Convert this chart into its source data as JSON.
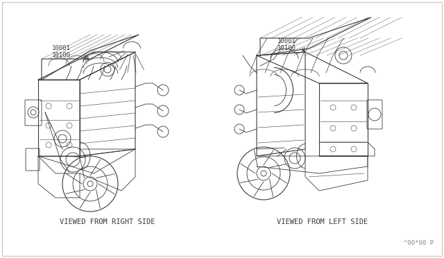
{
  "background_color": "#ffffff",
  "border_color": "#cccccc",
  "line_color": "#3a3a3a",
  "text_color": "#3a3a3a",
  "label_left_line1": "10001",
  "label_left_line2": "10100",
  "label_right_line1": "10001",
  "label_right_line2": "10100",
  "caption_left": "VIEWED FROM RIGHT SIDE",
  "caption_right": "VIEWED FROM LEFT SIDE",
  "watermark": "^00*00 P",
  "label_font_size": 6.5,
  "caption_font_size": 7.5,
  "watermark_font_size": 6.5,
  "fig_width": 6.4,
  "fig_height": 3.72,
  "fig_dpi": 100
}
